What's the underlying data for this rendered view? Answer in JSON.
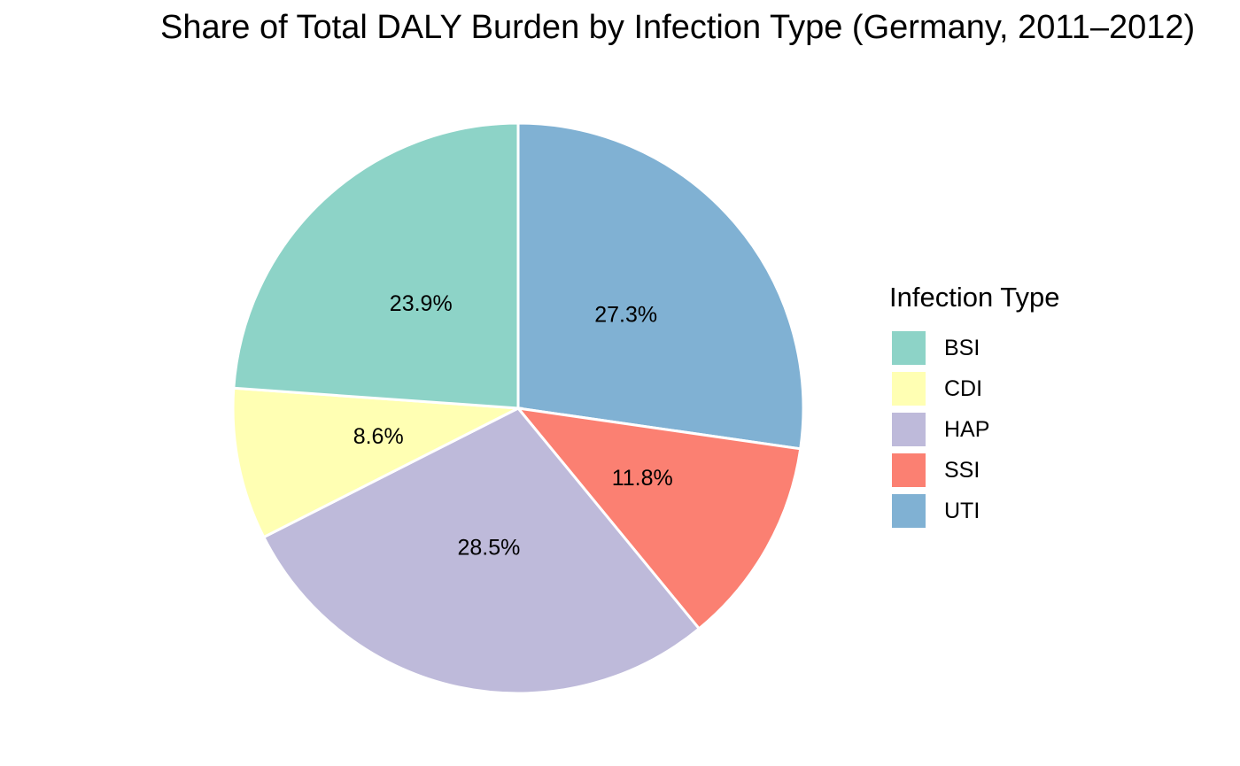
{
  "chart_data": {
    "type": "pie",
    "title": "Share of Total DALY Burden by Infection Type (Germany, 2011–2012)",
    "legend_title": "Infection Type",
    "legend_position": "right",
    "start_angle_deg": 0,
    "direction": "clockwise",
    "slices": [
      {
        "label": "UTI",
        "value": 27.3,
        "text": "27.3%",
        "color": "#80B1D3"
      },
      {
        "label": "SSI",
        "value": 11.8,
        "text": "11.8%",
        "color": "#FB8072"
      },
      {
        "label": "HAP",
        "value": 28.5,
        "text": "28.5%",
        "color": "#BEBADA"
      },
      {
        "label": "CDI",
        "value": 8.6,
        "text": "8.6%",
        "color": "#FFFFB3"
      },
      {
        "label": "BSI",
        "value": 23.9,
        "text": "23.9%",
        "color": "#8DD3C7"
      }
    ],
    "legend_order": [
      "BSI",
      "CDI",
      "HAP",
      "SSI",
      "UTI"
    ]
  }
}
